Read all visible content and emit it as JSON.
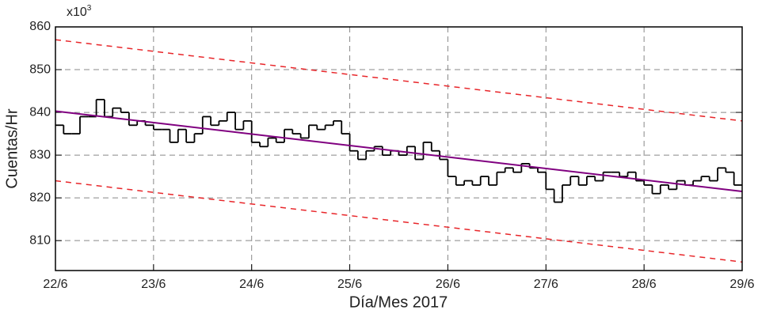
{
  "chart_data": {
    "type": "step",
    "xlabel": "Día/Mes 2017",
    "ylabel": "Cuentas/Hr",
    "multiplier": "x10",
    "multiplier_exp": "3",
    "xlim": [
      0,
      7
    ],
    "xticks": [
      {
        "value": 0,
        "label": "22/6"
      },
      {
        "value": 1,
        "label": "23/6"
      },
      {
        "value": 2,
        "label": "24/6"
      },
      {
        "value": 3,
        "label": "25/6"
      },
      {
        "value": 4,
        "label": "26/6"
      },
      {
        "value": 5,
        "label": "27/6"
      },
      {
        "value": 6,
        "label": "28/6"
      },
      {
        "value": 7,
        "label": "29/6"
      }
    ],
    "ylim": [
      803,
      860
    ],
    "yticks": [
      810,
      820,
      830,
      840,
      850,
      860
    ],
    "grid": true,
    "counts": {
      "color": "#000000",
      "values": [
        837,
        835,
        835,
        839,
        839,
        843,
        839,
        841,
        840,
        837,
        838,
        837,
        836,
        836,
        833,
        836,
        833,
        835,
        839,
        837,
        838,
        840,
        836,
        838,
        833,
        832,
        834,
        833,
        836,
        835,
        834,
        837,
        836,
        837,
        838,
        835,
        831,
        829,
        831,
        832,
        830,
        831,
        830,
        832,
        829,
        833,
        831,
        829,
        825,
        823,
        824,
        823,
        825,
        823,
        826,
        827,
        826,
        828,
        827,
        826,
        822,
        819,
        823,
        825,
        823,
        825,
        824,
        826,
        826,
        825,
        826,
        824,
        823,
        821,
        823,
        822,
        824,
        823,
        824,
        825,
        824,
        827,
        826,
        823
      ]
    },
    "trend": {
      "color": "#800080",
      "x": [
        0,
        7
      ],
      "values": [
        840.3,
        821.5
      ]
    },
    "bands": [
      {
        "color": "#e8262a",
        "x": [
          0,
          7
        ],
        "values": [
          857,
          838
        ]
      },
      {
        "color": "#e8262a",
        "x": [
          0,
          7
        ],
        "values": [
          824,
          805
        ]
      }
    ]
  }
}
